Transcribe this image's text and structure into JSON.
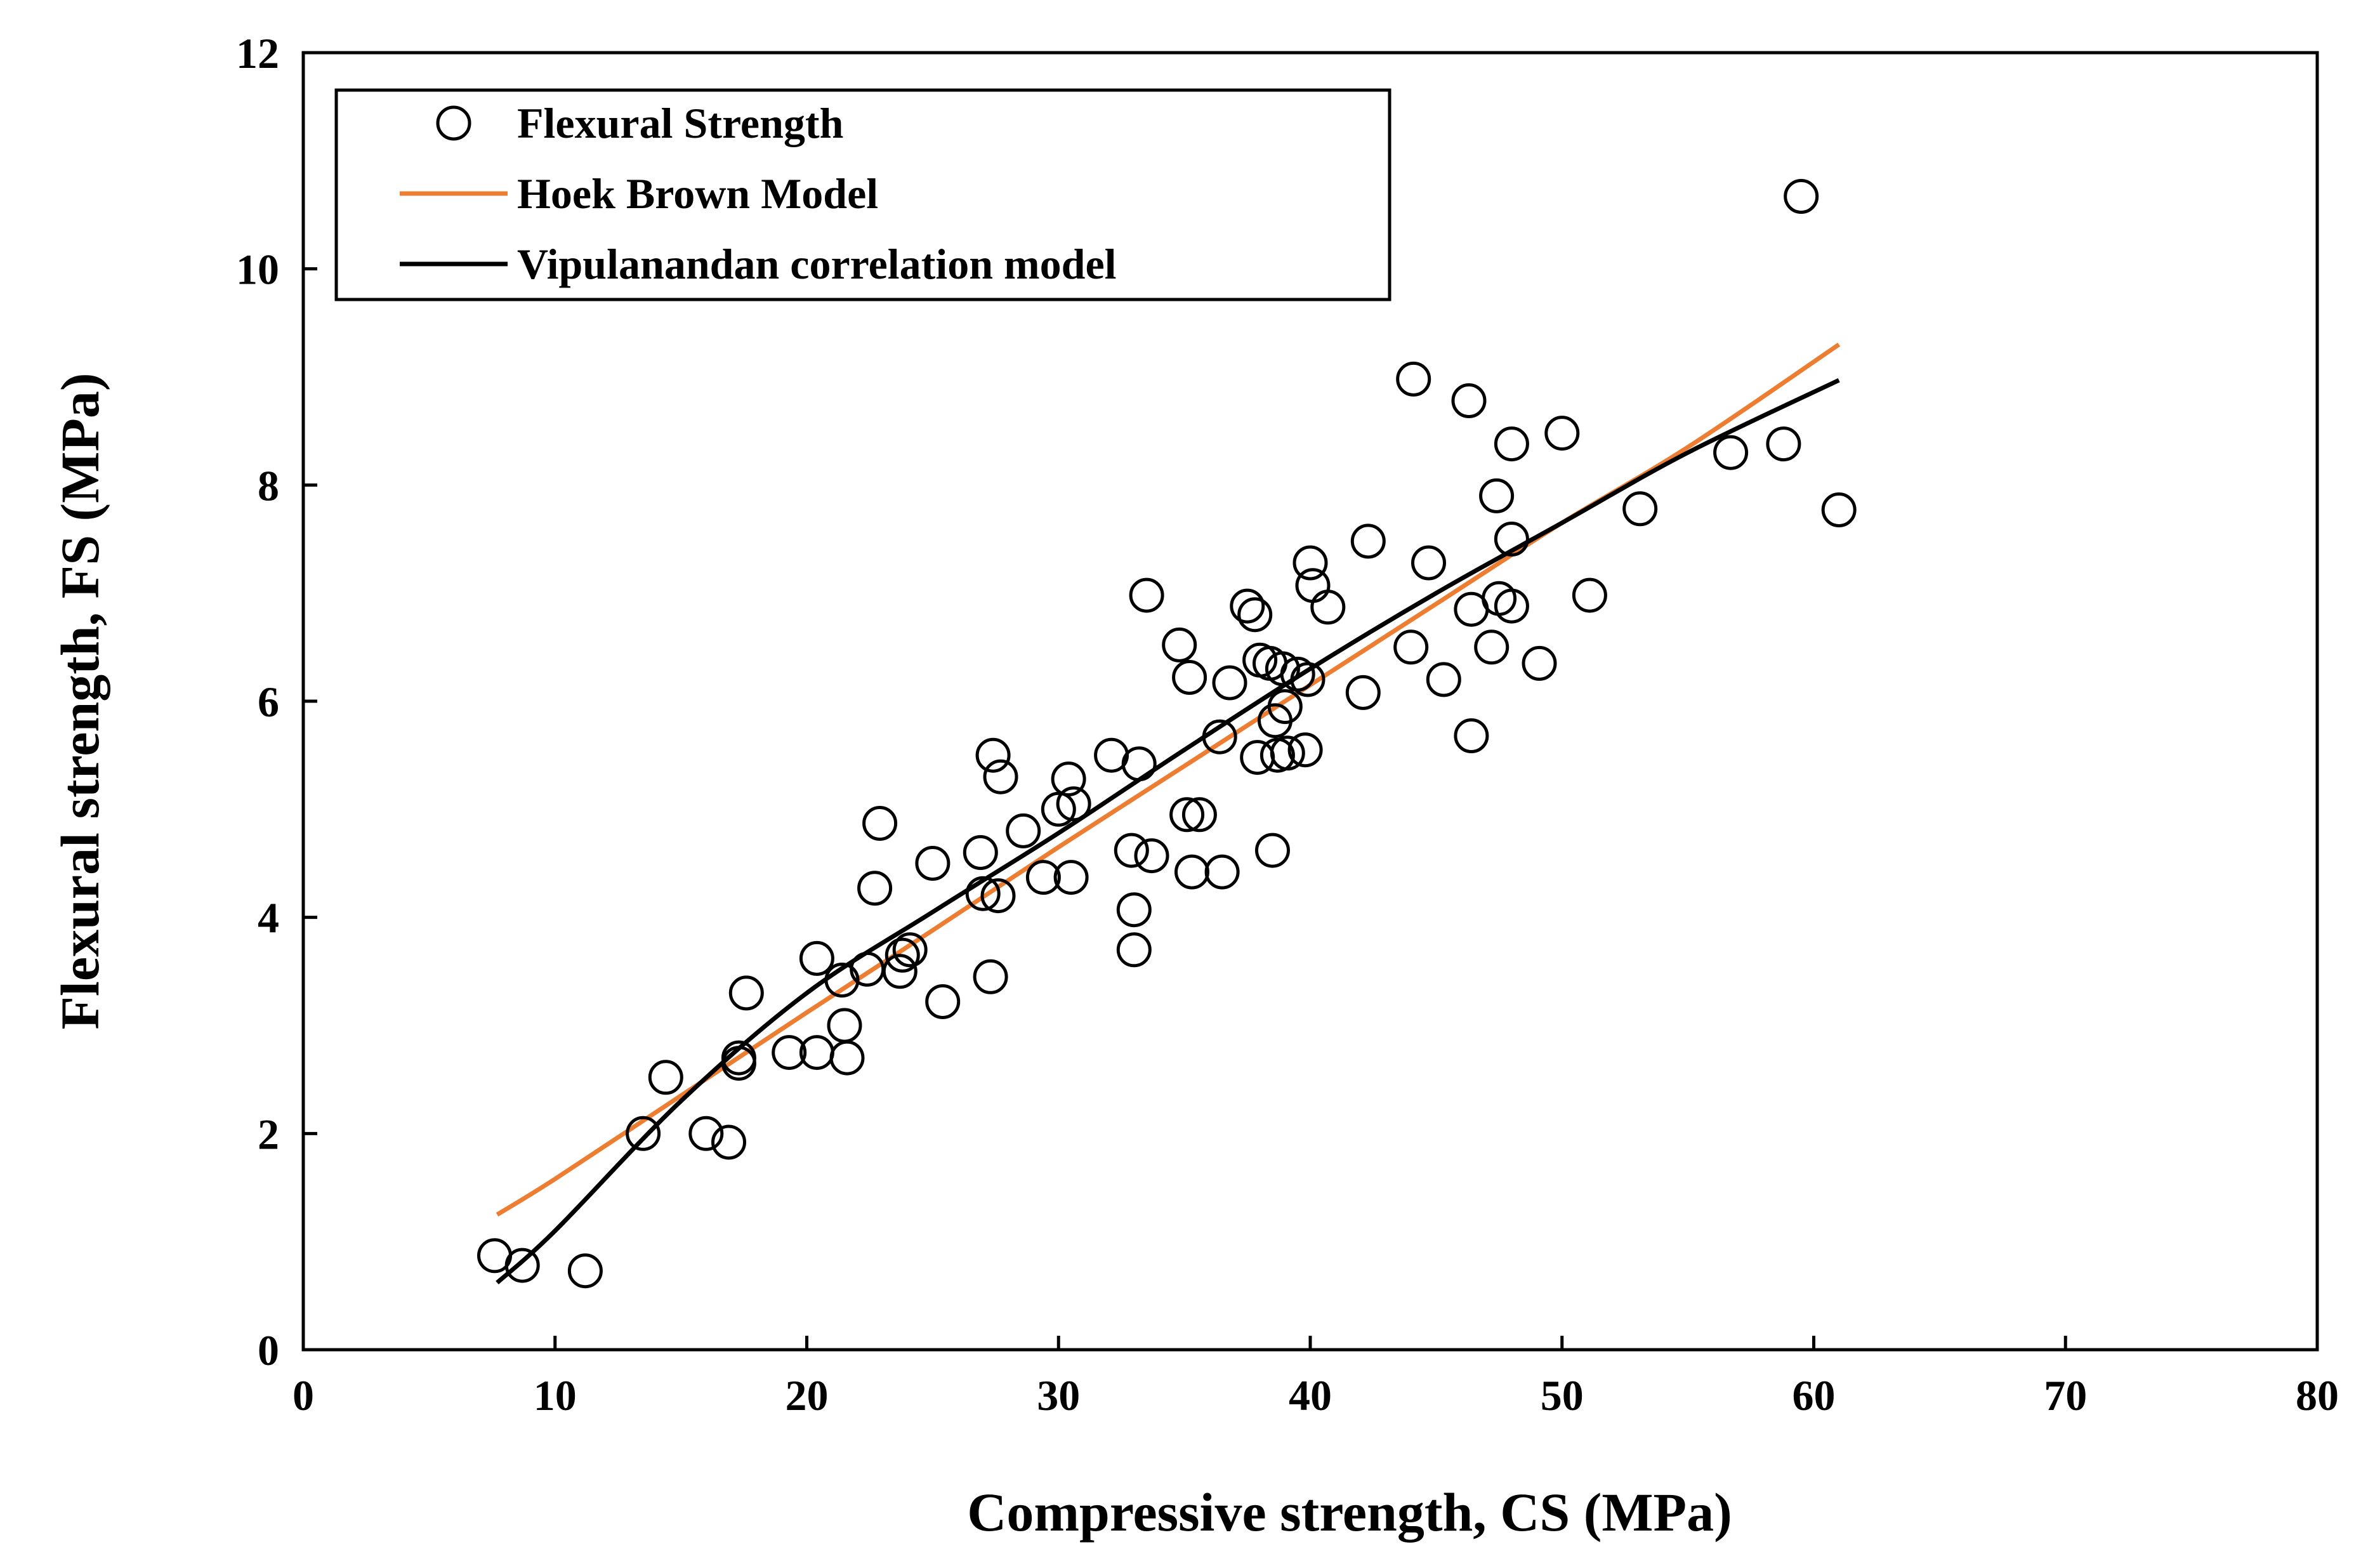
{
  "chart_data": {
    "type": "scatter",
    "title": "",
    "xlabel": "Compressive strength, CS (MPa)",
    "ylabel": "Flexural strength, FS (MPa)",
    "xlim": [
      0,
      80
    ],
    "ylim": [
      0,
      12
    ],
    "xticks": [
      "0",
      "10",
      "20",
      "30",
      "40",
      "50",
      "60",
      "70",
      "80"
    ],
    "yticks": [
      "0",
      "2",
      "4",
      "6",
      "8",
      "10",
      "12"
    ],
    "grid": false,
    "legend_position": "top-left",
    "colors": {
      "hoek": "#ED7D31",
      "vipul": "#000000",
      "points": "#000000"
    },
    "series": [
      {
        "name": "Flexural Strength",
        "kind": "scatter",
        "points": [
          [
            7.6,
            0.87
          ],
          [
            8.7,
            0.78
          ],
          [
            11.2,
            0.73
          ],
          [
            13.5,
            2.0
          ],
          [
            14.4,
            2.52
          ],
          [
            16.0,
            2.0
          ],
          [
            16.9,
            1.92
          ],
          [
            17.3,
            2.65
          ],
          [
            17.3,
            2.7
          ],
          [
            17.6,
            3.3
          ],
          [
            19.3,
            2.75
          ],
          [
            20.4,
            2.75
          ],
          [
            20.4,
            3.62
          ],
          [
            21.4,
            3.42
          ],
          [
            21.5,
            3.0
          ],
          [
            21.6,
            2.7
          ],
          [
            22.4,
            3.52
          ],
          [
            22.7,
            4.27
          ],
          [
            22.9,
            4.87
          ],
          [
            23.7,
            3.5
          ],
          [
            23.8,
            3.65
          ],
          [
            24.1,
            3.7
          ],
          [
            25.0,
            4.5
          ],
          [
            25.4,
            3.22
          ],
          [
            26.9,
            4.6
          ],
          [
            27.0,
            4.22
          ],
          [
            27.3,
            3.45
          ],
          [
            27.4,
            5.5
          ],
          [
            27.6,
            4.2
          ],
          [
            27.7,
            5.3
          ],
          [
            28.6,
            4.8
          ],
          [
            29.4,
            4.37
          ],
          [
            30.0,
            5.0
          ],
          [
            30.4,
            5.28
          ],
          [
            30.5,
            4.37
          ],
          [
            30.6,
            5.05
          ],
          [
            32.1,
            5.5
          ],
          [
            32.9,
            4.62
          ],
          [
            33.0,
            4.07
          ],
          [
            33.0,
            3.7
          ],
          [
            33.2,
            5.42
          ],
          [
            33.5,
            6.98
          ],
          [
            33.7,
            4.57
          ],
          [
            34.8,
            6.52
          ],
          [
            35.1,
            4.95
          ],
          [
            35.2,
            6.22
          ],
          [
            35.3,
            4.42
          ],
          [
            35.6,
            4.95
          ],
          [
            36.4,
            5.67
          ],
          [
            36.5,
            4.42
          ],
          [
            36.8,
            6.17
          ],
          [
            37.5,
            6.88
          ],
          [
            37.8,
            6.8
          ],
          [
            37.9,
            5.48
          ],
          [
            38.0,
            6.38
          ],
          [
            38.4,
            6.35
          ],
          [
            38.5,
            4.62
          ],
          [
            38.6,
            5.82
          ],
          [
            38.7,
            5.5
          ],
          [
            38.9,
            6.3
          ],
          [
            39.0,
            5.95
          ],
          [
            39.1,
            5.52
          ],
          [
            39.5,
            6.25
          ],
          [
            39.8,
            5.55
          ],
          [
            39.9,
            6.2
          ],
          [
            40.0,
            7.28
          ],
          [
            40.1,
            7.07
          ],
          [
            40.7,
            6.87
          ],
          [
            42.1,
            6.08
          ],
          [
            42.3,
            7.48
          ],
          [
            44.0,
            6.5
          ],
          [
            44.1,
            8.98
          ],
          [
            44.7,
            7.28
          ],
          [
            45.3,
            6.2
          ],
          [
            46.3,
            8.78
          ],
          [
            46.4,
            6.85
          ],
          [
            46.4,
            5.68
          ],
          [
            47.2,
            6.5
          ],
          [
            47.4,
            7.9
          ],
          [
            47.5,
            6.95
          ],
          [
            48.0,
            6.88
          ],
          [
            48.0,
            8.38
          ],
          [
            48.0,
            7.5
          ],
          [
            49.1,
            6.35
          ],
          [
            50.0,
            8.48
          ],
          [
            51.1,
            6.98
          ],
          [
            53.1,
            7.78
          ],
          [
            56.7,
            8.3
          ],
          [
            58.8,
            8.38
          ],
          [
            59.5,
            10.67
          ],
          [
            61.0,
            7.77
          ]
        ]
      },
      {
        "name": "Hoek Brown Model",
        "kind": "line",
        "x": [
          7.7,
          10,
          15,
          20,
          25,
          30,
          35,
          40,
          45,
          50,
          55,
          61
        ],
        "y": [
          1.25,
          1.58,
          2.35,
          3.12,
          3.88,
          4.65,
          5.4,
          6.15,
          6.9,
          7.65,
          8.35,
          9.3
        ]
      },
      {
        "name": "Vipulanandan correlation model",
        "kind": "line",
        "x": [
          7.7,
          10,
          15,
          20,
          25,
          30,
          35,
          40,
          45,
          50,
          55,
          61
        ],
        "y": [
          0.62,
          1.1,
          2.3,
          3.3,
          4.05,
          4.78,
          5.55,
          6.3,
          7.0,
          7.65,
          8.3,
          8.97
        ]
      }
    ]
  }
}
